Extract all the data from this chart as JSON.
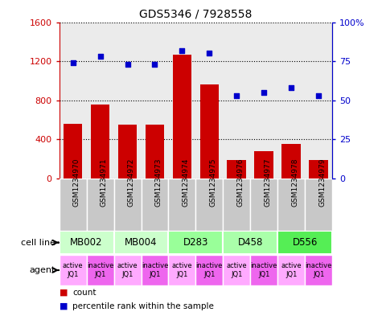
{
  "title": "GDS5346 / 7928558",
  "samples": [
    "GSM1234970",
    "GSM1234971",
    "GSM1234972",
    "GSM1234973",
    "GSM1234974",
    "GSM1234975",
    "GSM1234976",
    "GSM1234977",
    "GSM1234978",
    "GSM1234979"
  ],
  "counts": [
    560,
    760,
    555,
    555,
    1270,
    960,
    190,
    280,
    350,
    190
  ],
  "percentiles": [
    74,
    78,
    73,
    73,
    82,
    80,
    53,
    55,
    58,
    53
  ],
  "cell_lines": [
    {
      "label": "MB002",
      "start": 0,
      "end": 2,
      "color": "#ccffcc"
    },
    {
      "label": "MB004",
      "start": 2,
      "end": 4,
      "color": "#ccffcc"
    },
    {
      "label": "D283",
      "start": 4,
      "end": 6,
      "color": "#99ff99"
    },
    {
      "label": "D458",
      "start": 6,
      "end": 8,
      "color": "#aaffaa"
    },
    {
      "label": "D556",
      "start": 8,
      "end": 10,
      "color": "#55ee55"
    }
  ],
  "agents": [
    {
      "label": "active\nJQ1",
      "bg": "#ffaaff"
    },
    {
      "label": "inactive\nJQ1",
      "bg": "#ee66ee"
    },
    {
      "label": "active\nJQ1",
      "bg": "#ffaaff"
    },
    {
      "label": "inactive\nJQ1",
      "bg": "#ee66ee"
    },
    {
      "label": "active\nJQ1",
      "bg": "#ffaaff"
    },
    {
      "label": "inactive\nJQ1",
      "bg": "#ee66ee"
    },
    {
      "label": "active\nJQ1",
      "bg": "#ffaaff"
    },
    {
      "label": "inactive\nJQ1",
      "bg": "#ee66ee"
    },
    {
      "label": "active\nJQ1",
      "bg": "#ffaaff"
    },
    {
      "label": "inactive\nJQ1",
      "bg": "#ee66ee"
    }
  ],
  "bar_color": "#cc0000",
  "dot_color": "#0000cc",
  "ylim_left": [
    0,
    1600
  ],
  "ylim_right": [
    0,
    100
  ],
  "yticks_left": [
    0,
    400,
    800,
    1200,
    1600
  ],
  "yticks_right": [
    0,
    25,
    50,
    75,
    100
  ],
  "ytick_labels_left": [
    "0",
    "400",
    "800",
    "1200",
    "1600"
  ],
  "ytick_labels_right": [
    "0",
    "25",
    "50",
    "75",
    "100%"
  ],
  "bar_width": 0.7,
  "sample_bg_color": "#c8c8c8",
  "white_bg": "#ffffff"
}
